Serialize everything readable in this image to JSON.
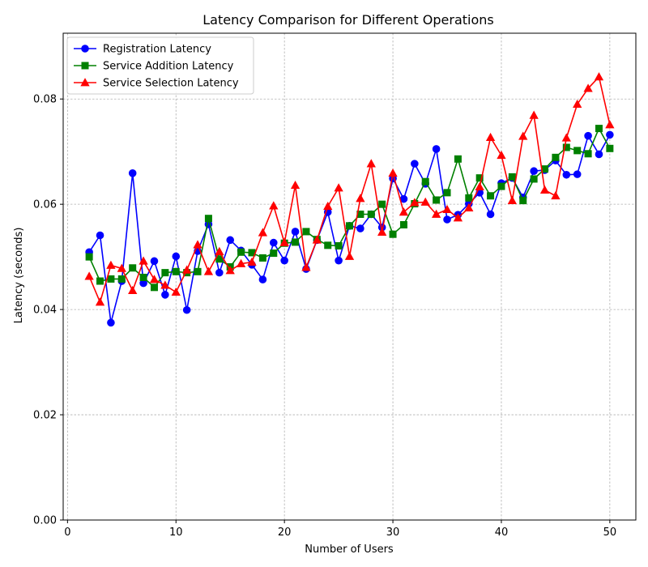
{
  "chart_data": {
    "type": "line",
    "title": "Latency Comparison for Different Operations",
    "xlabel": "Number of Users",
    "ylabel": "Latency (seconds)",
    "xlim": [
      -0.4,
      52.4
    ],
    "ylim": [
      0,
      0.0925
    ],
    "xticks": [
      0,
      10,
      20,
      30,
      40,
      50
    ],
    "yticks": [
      0.0,
      0.02,
      0.04,
      0.06,
      0.08
    ],
    "ytick_labels": [
      "0.00",
      "0.02",
      "0.04",
      "0.06",
      "0.08"
    ],
    "grid": true,
    "legend_position": "top-left",
    "x": [
      2,
      3,
      4,
      5,
      6,
      7,
      8,
      9,
      10,
      11,
      12,
      13,
      14,
      15,
      16,
      17,
      18,
      19,
      20,
      21,
      22,
      23,
      24,
      25,
      26,
      27,
      28,
      29,
      30,
      31,
      32,
      33,
      34,
      35,
      36,
      37,
      38,
      39,
      40,
      41,
      42,
      43,
      44,
      45,
      46,
      47,
      48,
      49,
      50
    ],
    "series": [
      {
        "name": "Registration Latency",
        "color": "#0000ff",
        "marker": "circle",
        "values": [
          0.0509,
          0.0541,
          0.0375,
          0.0454,
          0.0659,
          0.045,
          0.0492,
          0.0428,
          0.0501,
          0.0399,
          0.0511,
          0.0562,
          0.047,
          0.0532,
          0.0512,
          0.0485,
          0.0457,
          0.0527,
          0.0493,
          0.0548,
          0.0477,
          0.0532,
          0.0585,
          0.0493,
          0.0559,
          0.0554,
          0.0581,
          0.0556,
          0.0649,
          0.061,
          0.0677,
          0.0639,
          0.0705,
          0.0571,
          0.058,
          0.0601,
          0.0622,
          0.0581,
          0.064,
          0.065,
          0.0613,
          0.0663,
          0.0665,
          0.0683,
          0.0656,
          0.0657,
          0.073,
          0.0695,
          0.0732
        ]
      },
      {
        "name": "Service Addition Latency",
        "color": "#008000",
        "marker": "square",
        "values": [
          0.05,
          0.0454,
          0.0458,
          0.0458,
          0.0479,
          0.0461,
          0.0442,
          0.047,
          0.0472,
          0.047,
          0.0472,
          0.0573,
          0.0496,
          0.0481,
          0.0509,
          0.0508,
          0.0498,
          0.0507,
          0.0526,
          0.0528,
          0.0548,
          0.0533,
          0.0522,
          0.0521,
          0.0559,
          0.0581,
          0.0581,
          0.06,
          0.0543,
          0.0561,
          0.0601,
          0.0643,
          0.0608,
          0.0622,
          0.0686,
          0.0612,
          0.065,
          0.0616,
          0.0634,
          0.0652,
          0.0607,
          0.0648,
          0.0667,
          0.0689,
          0.0708,
          0.0702,
          0.0696,
          0.0744,
          0.0706
        ]
      },
      {
        "name": "Service Selection Latency",
        "color": "#ff0000",
        "marker": "triangle",
        "values": [
          0.0463,
          0.0414,
          0.0484,
          0.0478,
          0.0436,
          0.0492,
          0.0457,
          0.0446,
          0.0433,
          0.0475,
          0.0523,
          0.0472,
          0.051,
          0.0474,
          0.0487,
          0.049,
          0.0546,
          0.0597,
          0.0527,
          0.0636,
          0.048,
          0.0532,
          0.0596,
          0.0631,
          0.0501,
          0.0611,
          0.0677,
          0.0547,
          0.0659,
          0.0585,
          0.0603,
          0.0604,
          0.0581,
          0.059,
          0.0574,
          0.0593,
          0.0633,
          0.0727,
          0.0693,
          0.0607,
          0.0729,
          0.0769,
          0.0627,
          0.0616,
          0.0726,
          0.079,
          0.082,
          0.0842,
          0.0751
        ]
      }
    ]
  }
}
